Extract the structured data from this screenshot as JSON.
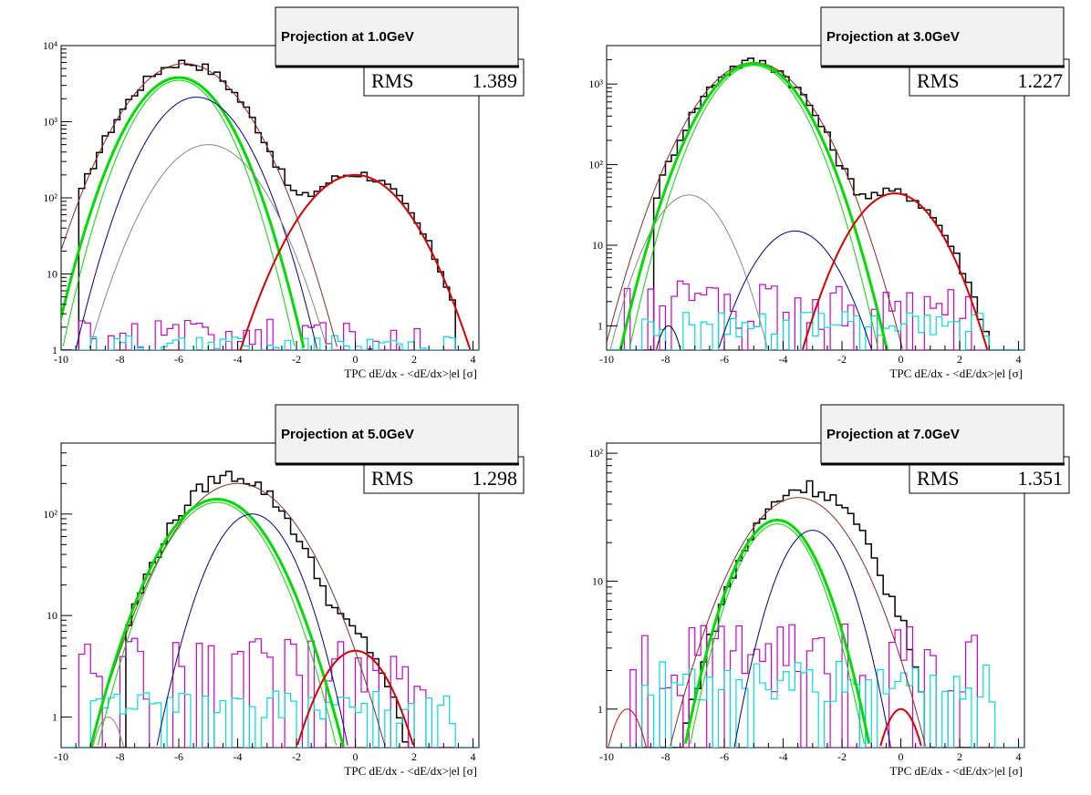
{
  "chart_data": [
    {
      "type": "histogram",
      "title": "Projection at 1.0GeV",
      "stats": {
        "label": "RMS",
        "value": "1.389"
      },
      "xlabel": "TPC dE/dx - <dE/dx>|el [σ]",
      "xlim": [
        -10,
        4.2
      ],
      "ylim": [
        1,
        10000
      ],
      "yscale": "log",
      "x_ticks": [
        -10,
        -8,
        -6,
        -4,
        -2,
        0,
        2,
        4
      ],
      "y_ticks": [
        {
          "v": 1,
          "label": "1"
        },
        {
          "v": 10,
          "label": "10"
        },
        {
          "v": 100,
          "label": "10²"
        },
        {
          "v": 1000,
          "label": "10³"
        },
        {
          "v": 10000,
          "label": "10⁴"
        }
      ],
      "data_hist": {
        "color": "#000000",
        "mu": -5.8,
        "sigma": 1.25,
        "amp": 6000,
        "mu2": 0.0,
        "sigma2": 1.2,
        "amp2": 210,
        "range": [
          -9.4,
          3.4
        ]
      },
      "hist2": {
        "color": "#cc00cc",
        "base": 1.1
      },
      "hist3": {
        "color": "#00dddd",
        "base": 1.05
      },
      "fits": [
        {
          "color": "#8b2a2a",
          "mu": -5.8,
          "sigma": 1.25,
          "amp": 5800,
          "width": 1
        },
        {
          "color": "#00dd00",
          "mu": -6.0,
          "sigma": 1.05,
          "amp": 3800,
          "width": 3
        },
        {
          "color": "#00dd00",
          "mu": -6.0,
          "sigma": 0.98,
          "amp": 3500,
          "width": 1
        },
        {
          "color": "#00008b",
          "mu": -5.4,
          "sigma": 1.05,
          "amp": 2100,
          "width": 1
        },
        {
          "color": "#888888",
          "mu": -5.0,
          "sigma": 1.15,
          "amp": 500,
          "width": 1
        },
        {
          "color": "#dd0000",
          "mu": 0.0,
          "sigma": 1.2,
          "amp": 200,
          "width": 2
        }
      ]
    },
    {
      "type": "histogram",
      "title": "Projection at 3.0GeV",
      "stats": {
        "label": "RMS",
        "value": "1.227"
      },
      "xlabel": "TPC dE/dx - <dE/dx>|el [σ]",
      "xlim": [
        -10,
        4.2
      ],
      "ylim": [
        0.5,
        3000
      ],
      "yscale": "log",
      "x_ticks": [
        -10,
        -8,
        -6,
        -4,
        -2,
        0,
        2,
        4
      ],
      "y_ticks": [
        {
          "v": 1,
          "label": "1"
        },
        {
          "v": 10,
          "label": "10"
        },
        {
          "v": 100,
          "label": "10²"
        },
        {
          "v": 1000,
          "label": "10³"
        }
      ],
      "data_hist": {
        "color": "#000000",
        "mu": -5.0,
        "sigma": 1.2,
        "amp": 1900,
        "mu2": -0.2,
        "sigma2": 1.1,
        "amp2": 45,
        "range": [
          -8.5,
          3.0
        ]
      },
      "hist2": {
        "color": "#cc00cc",
        "base": 1.5
      },
      "hist3": {
        "color": "#00dddd",
        "base": 1.0
      },
      "fits": [
        {
          "color": "#8b2a2a",
          "mu": -5.0,
          "sigma": 1.25,
          "amp": 1850,
          "width": 1
        },
        {
          "color": "#00dd00",
          "mu": -5.0,
          "sigma": 1.12,
          "amp": 1800,
          "width": 3
        },
        {
          "color": "#00dd00",
          "mu": -5.0,
          "sigma": 1.05,
          "amp": 1700,
          "width": 1
        },
        {
          "color": "#888888",
          "mu": -7.2,
          "sigma": 0.9,
          "amp": 42,
          "width": 1
        },
        {
          "color": "#000000",
          "mu": -7.9,
          "sigma": 0.35,
          "amp": 1.0,
          "width": 1
        },
        {
          "color": "#00008b",
          "mu": -3.6,
          "sigma": 1.0,
          "amp": 15,
          "width": 1
        },
        {
          "color": "#dd0000",
          "mu": -0.2,
          "sigma": 1.05,
          "amp": 44,
          "width": 2
        }
      ]
    },
    {
      "type": "histogram",
      "title": "Projection at 5.0GeV",
      "stats": {
        "label": "RMS",
        "value": "1.298"
      },
      "xlabel": "TPC dE/dx - <dE/dx>|el [σ]",
      "xlim": [
        -10,
        4.2
      ],
      "ylim": [
        0.5,
        500
      ],
      "yscale": "log",
      "x_ticks": [
        -10,
        -8,
        -6,
        -4,
        -2,
        0,
        2,
        4
      ],
      "y_ticks": [
        {
          "v": 1,
          "label": "1"
        },
        {
          "v": 10,
          "label": "10"
        },
        {
          "v": 100,
          "label": "10²"
        }
      ],
      "data_hist": {
        "color": "#000000",
        "mu": -4.2,
        "sigma": 1.35,
        "amp": 240,
        "mu2": 0.0,
        "sigma2": 0.8,
        "amp2": 5,
        "range": [
          -7.8,
          2.0
        ]
      },
      "hist2": {
        "color": "#cc00cc",
        "base": 2.5
      },
      "hist3": {
        "color": "#00dddd",
        "base": 1.2
      },
      "fits": [
        {
          "color": "#8b2a2a",
          "mu": -4.0,
          "sigma": 1.45,
          "amp": 200,
          "width": 1
        },
        {
          "color": "#00dd00",
          "mu": -4.7,
          "sigma": 1.28,
          "amp": 140,
          "width": 3
        },
        {
          "color": "#00dd00",
          "mu": -4.7,
          "sigma": 1.22,
          "amp": 130,
          "width": 1
        },
        {
          "color": "#00008b",
          "mu": -3.5,
          "sigma": 1.0,
          "amp": 100,
          "width": 1
        },
        {
          "color": "#888888",
          "mu": -8.4,
          "sigma": 0.45,
          "amp": 1.0,
          "width": 1
        },
        {
          "color": "#dd0000",
          "mu": 0.0,
          "sigma": 0.95,
          "amp": 4.5,
          "width": 2
        }
      ]
    },
    {
      "type": "histogram",
      "title": "Projection at 7.0GeV",
      "stats": {
        "label": "RMS",
        "value": "1.351"
      },
      "xlabel": "TPC dE/dx - <dE/dx>|el [σ]",
      "xlim": [
        -10,
        4.2
      ],
      "ylim": [
        0.5,
        120
      ],
      "yscale": "log",
      "x_ticks": [
        -10,
        -8,
        -6,
        -4,
        -2,
        0,
        2,
        4
      ],
      "y_ticks": [
        {
          "v": 1,
          "label": "1"
        },
        {
          "v": 10,
          "label": "10"
        },
        {
          "v": 100,
          "label": "10²"
        }
      ],
      "data_hist": {
        "color": "#000000",
        "mu": -3.2,
        "sigma": 1.4,
        "amp": 55,
        "mu2": 0.0,
        "sigma2": 0.6,
        "amp2": 0.9,
        "range": [
          -7.4,
          0.8
        ]
      },
      "hist2": {
        "color": "#cc00cc",
        "base": 2.0
      },
      "hist3": {
        "color": "#00dddd",
        "base": 1.6
      },
      "fits": [
        {
          "color": "#8b2a2a",
          "mu": -3.5,
          "sigma": 1.45,
          "amp": 45,
          "width": 1
        },
        {
          "color": "#00dd00",
          "mu": -4.2,
          "sigma": 1.1,
          "amp": 30,
          "width": 3
        },
        {
          "color": "#00dd00",
          "mu": -4.2,
          "sigma": 1.05,
          "amp": 28,
          "width": 1
        },
        {
          "color": "#00008b",
          "mu": -3.0,
          "sigma": 0.95,
          "amp": 25,
          "width": 1
        },
        {
          "color": "#dd0000",
          "mu": -9.3,
          "sigma": 0.55,
          "amp": 1.0,
          "width": 1
        },
        {
          "color": "#dd0000",
          "mu": 0.0,
          "sigma": 0.6,
          "amp": 1.0,
          "width": 2
        }
      ]
    }
  ]
}
